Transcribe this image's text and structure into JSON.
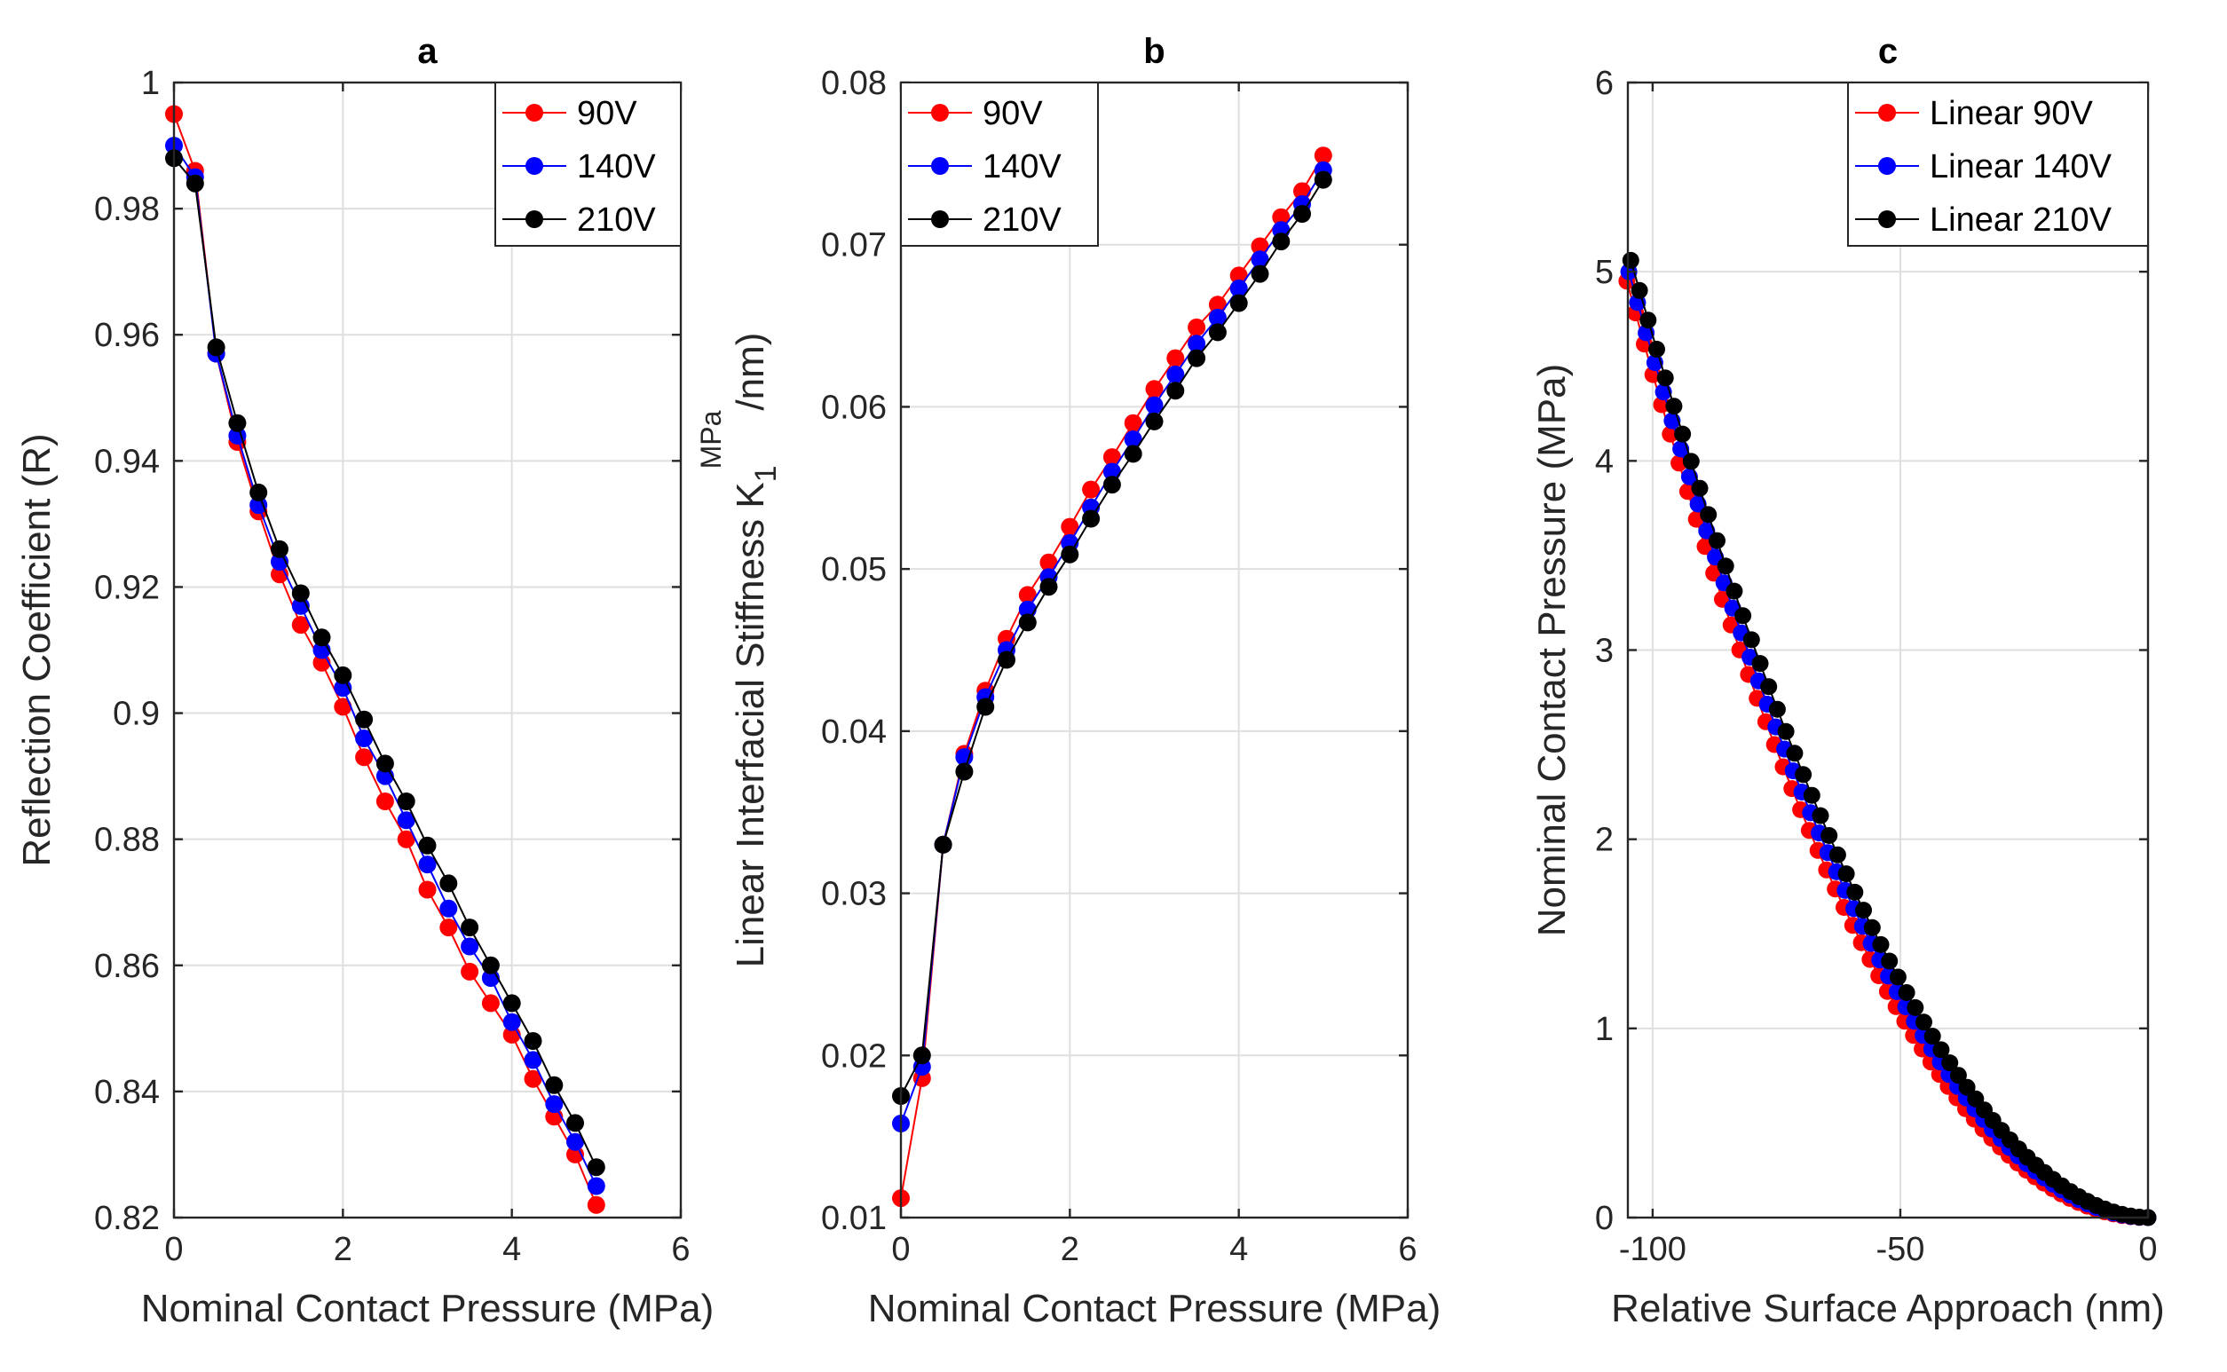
{
  "colors": {
    "red": "#ff0000",
    "blue": "#0000ff",
    "black": "#000000",
    "grid": "#dfdfdf",
    "axis": "#262626"
  },
  "chart_data": [
    {
      "id": "a",
      "type": "line",
      "title": "a",
      "xlabel": "Nominal Contact Pressure (MPa)",
      "ylabel": "Reflection Coefficient (R)",
      "ylabel_sup": "",
      "ylabel_tail": "",
      "xlim": [
        0,
        6
      ],
      "ylim": [
        0.82,
        1.0
      ],
      "xticks": [
        0,
        2,
        4,
        6
      ],
      "xtick_labels": [
        "0",
        "2",
        "4",
        "6"
      ],
      "yticks": [
        0.82,
        0.84,
        0.86,
        0.88,
        0.9,
        0.92,
        0.94,
        0.96,
        0.98,
        1.0
      ],
      "ytick_labels": [
        "0.82",
        "0.84",
        "0.86",
        "0.88",
        "0.9",
        "0.92",
        "0.94",
        "0.96",
        "0.98",
        "1"
      ],
      "grid": true,
      "legend": "top-right",
      "x": [
        0,
        0.25,
        0.5,
        0.75,
        1.0,
        1.25,
        1.5,
        1.75,
        2.0,
        2.25,
        2.5,
        2.75,
        3.0,
        3.25,
        3.5,
        3.75,
        4.0,
        4.25,
        4.5,
        4.75,
        5.0
      ],
      "series": [
        {
          "name": "90V",
          "color": "#ff0000",
          "values": [
            0.995,
            0.986,
            0.957,
            0.943,
            0.932,
            0.922,
            0.914,
            0.908,
            0.901,
            0.893,
            0.886,
            0.88,
            0.872,
            0.866,
            0.859,
            0.854,
            0.849,
            0.842,
            0.836,
            0.83,
            0.822
          ]
        },
        {
          "name": "140V",
          "color": "#0000ff",
          "values": [
            0.99,
            0.985,
            0.957,
            0.944,
            0.933,
            0.924,
            0.917,
            0.91,
            0.904,
            0.896,
            0.89,
            0.883,
            0.876,
            0.869,
            0.863,
            0.858,
            0.851,
            0.845,
            0.838,
            0.832,
            0.825
          ]
        },
        {
          "name": "210V",
          "color": "#000000",
          "values": [
            0.988,
            0.984,
            0.958,
            0.946,
            0.935,
            0.926,
            0.919,
            0.912,
            0.906,
            0.899,
            0.892,
            0.886,
            0.879,
            0.873,
            0.866,
            0.86,
            0.854,
            0.848,
            0.841,
            0.835,
            0.828
          ]
        }
      ]
    },
    {
      "id": "b",
      "type": "line",
      "title": "b",
      "xlabel": "Nominal Contact Pressure (MPa)",
      "ylabel": "Linear Interfacial Stiffness K",
      "ylabel_sub": "1",
      "ylabel_sup": "MPa",
      "ylabel_tail": "/nm)",
      "xlim": [
        0,
        6
      ],
      "ylim": [
        0.01,
        0.08
      ],
      "xticks": [
        0,
        2,
        4,
        6
      ],
      "xtick_labels": [
        "0",
        "2",
        "4",
        "6"
      ],
      "yticks": [
        0.01,
        0.02,
        0.03,
        0.04,
        0.05,
        0.06,
        0.07,
        0.08
      ],
      "ytick_labels": [
        "0.01",
        "0.02",
        "0.03",
        "0.04",
        "0.05",
        "0.06",
        "0.07",
        "0.08"
      ],
      "grid": true,
      "legend": "top-left",
      "x": [
        0,
        0.25,
        0.5,
        0.75,
        1.0,
        1.25,
        1.5,
        1.75,
        2.0,
        2.25,
        2.5,
        2.75,
        3.0,
        3.25,
        3.5,
        3.75,
        4.0,
        4.25,
        4.5,
        4.75,
        5.0
      ],
      "series": [
        {
          "name": "90V",
          "color": "#ff0000",
          "values": [
            0.0112,
            0.0186,
            0.033,
            0.0386,
            0.0425,
            0.0457,
            0.0484,
            0.0504,
            0.0526,
            0.0549,
            0.0569,
            0.059,
            0.0611,
            0.063,
            0.0649,
            0.0663,
            0.0681,
            0.0699,
            0.0717,
            0.0733,
            0.0755
          ]
        },
        {
          "name": "140V",
          "color": "#0000ff",
          "values": [
            0.0158,
            0.0193,
            0.033,
            0.0384,
            0.0421,
            0.045,
            0.0475,
            0.0495,
            0.0516,
            0.0538,
            0.056,
            0.058,
            0.0601,
            0.062,
            0.0639,
            0.0655,
            0.0673,
            0.0691,
            0.0709,
            0.0725,
            0.0746
          ]
        },
        {
          "name": "210V",
          "color": "#000000",
          "values": [
            0.0175,
            0.02,
            0.033,
            0.0375,
            0.0415,
            0.0444,
            0.0467,
            0.0489,
            0.0509,
            0.0531,
            0.0552,
            0.0571,
            0.0591,
            0.061,
            0.063,
            0.0646,
            0.0664,
            0.0682,
            0.0702,
            0.0719,
            0.074
          ]
        }
      ]
    },
    {
      "id": "c",
      "type": "line",
      "title": "c",
      "xlabel": "Relative Surface Approach (nm)",
      "ylabel": "Nominal Contact Pressure (MPa)",
      "ylabel_sup": "",
      "ylabel_tail": "",
      "xlim": [
        -105,
        0
      ],
      "ylim": [
        0,
        6
      ],
      "xticks": [
        -100,
        -50,
        0
      ],
      "xtick_labels": [
        "-100",
        "-50",
        "0"
      ],
      "yticks": [
        0,
        1,
        2,
        3,
        4,
        5,
        6
      ],
      "ytick_labels": [
        "0",
        "1",
        "2",
        "3",
        "4",
        "5",
        "6"
      ],
      "grid": true,
      "legend": "top-right",
      "curve_model": "pressure = p_max * (approach / x_min)^exponent",
      "points": 61,
      "series": [
        {
          "name": "Linear 90V",
          "color": "#ff0000",
          "x_min": -105.2,
          "p_max": 4.95,
          "exponent": 2.05
        },
        {
          "name": "Linear 140V",
          "color": "#0000ff",
          "x_min": -104.8,
          "p_max": 5.0,
          "exponent": 1.97
        },
        {
          "name": "Linear 210V",
          "color": "#000000",
          "x_min": -104.4,
          "p_max": 5.06,
          "exponent": 1.9
        }
      ]
    }
  ]
}
